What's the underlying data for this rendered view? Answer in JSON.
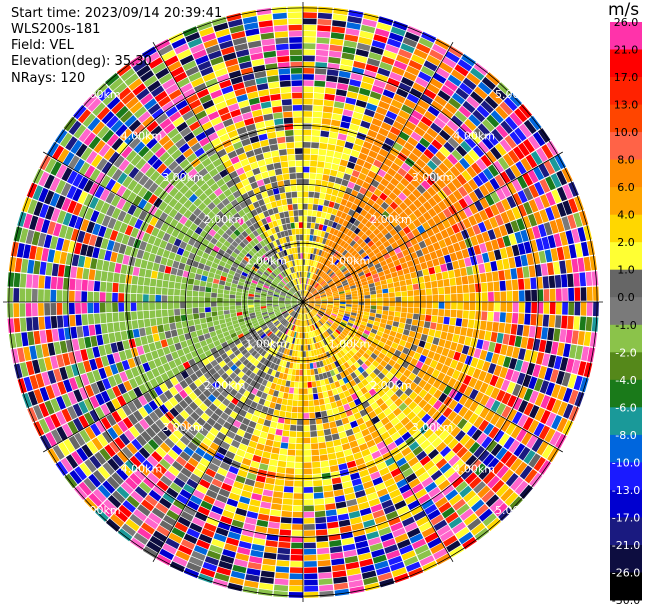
{
  "header": {
    "start_time": "Start time: 2023/09/14 20:39:41",
    "instrument": "WLS200s-181",
    "field": "Field: VEL",
    "elevation": "Elevation(deg): 35.30",
    "nrays": "NRays: 120"
  },
  "colorbar": {
    "unit": "m/s",
    "colors": [
      "#0d0d40",
      "#1a1a80",
      "#0000d0",
      "#1a1aff",
      "#0066dd",
      "#1a9999",
      "#1a7a1a",
      "#55881a",
      "#8bc34a",
      "#7a7a7a",
      "#666666",
      "#ffff33",
      "#ffd700",
      "#ffa500",
      "#ff8c00",
      "#ff6347",
      "#ff4500",
      "#ff2200",
      "#ff0000",
      "#ff33aa"
    ],
    "tick_labels": [
      "26.0",
      "21.0",
      "17.0",
      "13.0",
      "10.0",
      "8.0",
      "6.0",
      "4.0",
      "2.0",
      "1.0",
      "0.0",
      "-1.0",
      "-2.0",
      "-4.0",
      "-6.0",
      "-8.0",
      "-10.0",
      "-13.0",
      "-17.0",
      "-21.0",
      "-26.0",
      "-30.0"
    ]
  },
  "chart_data": {
    "type": "heatmap",
    "projection": "polar-ppi",
    "field": "VEL",
    "units": "m/s",
    "nrays": 120,
    "elevation_deg": 35.3,
    "range_rings_km": [
      1.0,
      2.0,
      3.0,
      4.0,
      5.0
    ],
    "range_ring_labels": [
      "1.00km",
      "2.00km",
      "3.00km",
      "4.00km",
      "5.00km"
    ],
    "azimuth_lines_deg": [
      0,
      30,
      60,
      90,
      120,
      150,
      180,
      210,
      240,
      270,
      300,
      330
    ],
    "colorbar_boundaries": [
      -30,
      -26,
      -21,
      -17,
      -13,
      -10,
      -8,
      -6,
      -4,
      -2,
      -1,
      0,
      1,
      2,
      4,
      6,
      8,
      10,
      13,
      17,
      21,
      26
    ],
    "dominant_values_by_sector": [
      {
        "sector": "north-east",
        "velocity_range": [
          4,
          6
        ]
      },
      {
        "sector": "east",
        "velocity_range": [
          1,
          4
        ]
      },
      {
        "sector": "south",
        "velocity_range": [
          1,
          2
        ]
      },
      {
        "sector": "south-west",
        "velocity_range": [
          -1,
          0
        ]
      },
      {
        "sector": "west",
        "velocity_range": [
          -6,
          -1
        ]
      },
      {
        "sector": "north-west",
        "velocity_range": [
          -4,
          -2
        ]
      }
    ],
    "far_range_noise": "random values across full range beyond ~3.5 km"
  }
}
